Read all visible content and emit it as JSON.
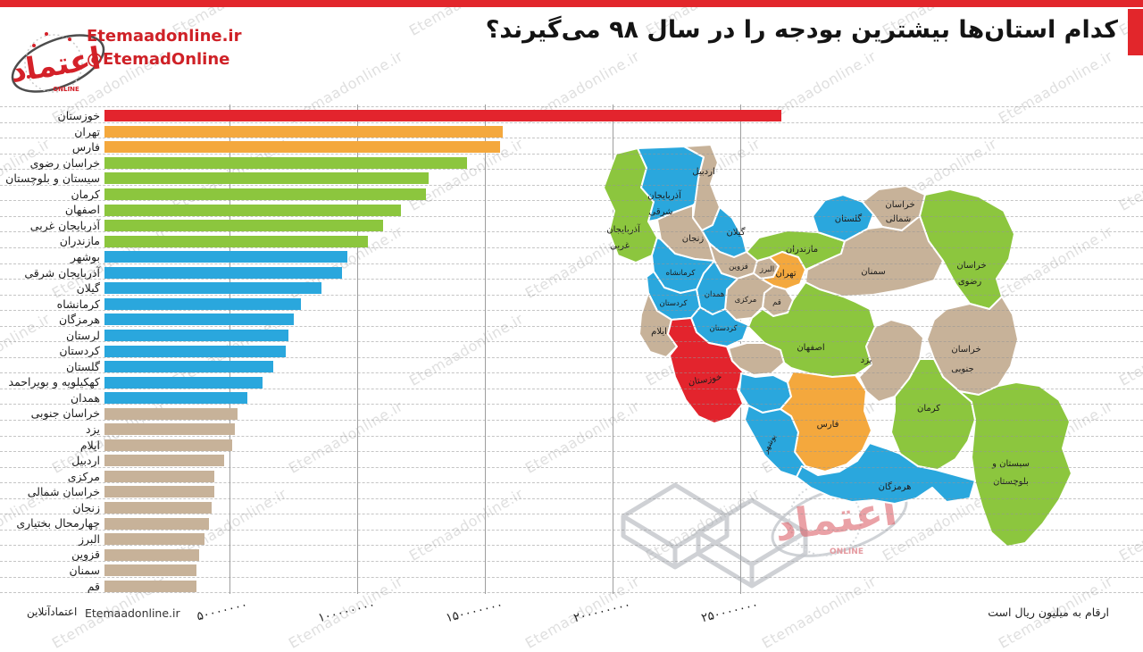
{
  "header": {
    "title": "کدام استان‌ها بیشترین بودجه را در سال ۹۸ می‌گیرند؟",
    "brand_url": "Etemaadonline.ir",
    "brand_handle": "@EtemadOnline",
    "logo_word": "اعتماد",
    "logo_online": "ONLINE"
  },
  "watermark": {
    "text": "Etemaadonline.ir"
  },
  "footer": {
    "credit_fa": "اعتمادآنلاین",
    "credit_en": "Etemaadonline.ir",
    "unit_note": "ارقام به میلیون ریال است"
  },
  "palette": {
    "red": "#e3242d",
    "orange": "#f4a83d",
    "green": "#8cc63e",
    "blue": "#2aa7dd",
    "tan": "#c7b299"
  },
  "chart_data": {
    "type": "bar",
    "orientation": "horizontal",
    "title": "کدام استان‌ها بیشترین بودجه را در سال ۹۸ می‌گیرند؟",
    "unit_note": "ارقام به میلیون ریال است",
    "legend_position": "none",
    "grid": "vertical solid gridlines + dashed horizontal row separators",
    "axis": {
      "tick_interval": 50000000,
      "xlim": [
        0,
        290000000
      ],
      "ticks": [
        {
          "label": "۵۰۰۰۰۰۰۰",
          "value": 50000000
        },
        {
          "label": "۱۰۰۰۰۰۰۰۰",
          "value": 100000000
        },
        {
          "label": "۱۵۰۰۰۰۰۰۰",
          "value": 150000000
        },
        {
          "label": "۲۰۰۰۰۰۰۰۰",
          "value": 200000000
        },
        {
          "label": "۲۵۰۰۰۰۰۰۰",
          "value": 250000000
        }
      ]
    },
    "provinces": [
      {
        "name": "خوزستان",
        "value": 265000000,
        "color": "red"
      },
      {
        "name": "تهران",
        "value": 156000000,
        "color": "orange"
      },
      {
        "name": "فارس",
        "value": 155000000,
        "color": "orange"
      },
      {
        "name": "خراسان رضوی",
        "value": 142000000,
        "color": "green"
      },
      {
        "name": "سیستان و بلوچستان",
        "value": 127000000,
        "color": "green"
      },
      {
        "name": "کرمان",
        "value": 126000000,
        "color": "green"
      },
      {
        "name": "اصفهان",
        "value": 116000000,
        "color": "green"
      },
      {
        "name": "آذربایجان غربی",
        "value": 109000000,
        "color": "green"
      },
      {
        "name": "مازندران",
        "value": 103000000,
        "color": "green"
      },
      {
        "name": "بوشهر",
        "value": 95000000,
        "color": "blue"
      },
      {
        "name": "آذربایجان شرقی",
        "value": 93000000,
        "color": "blue"
      },
      {
        "name": "گیلان",
        "value": 85000000,
        "color": "blue"
      },
      {
        "name": "کرمانشاه",
        "value": 77000000,
        "color": "blue"
      },
      {
        "name": "هرمزگان",
        "value": 74000000,
        "color": "blue"
      },
      {
        "name": "لرستان",
        "value": 72000000,
        "color": "blue"
      },
      {
        "name": "کردستان",
        "value": 71000000,
        "color": "blue"
      },
      {
        "name": "گلستان",
        "value": 66000000,
        "color": "blue"
      },
      {
        "name": "کهکیلویه و بویراحمد",
        "value": 62000000,
        "color": "blue"
      },
      {
        "name": "همدان",
        "value": 56000000,
        "color": "blue"
      },
      {
        "name": "خراسان جنوبی",
        "value": 52000000,
        "color": "tan"
      },
      {
        "name": "یزد",
        "value": 51000000,
        "color": "tan"
      },
      {
        "name": "ایلام",
        "value": 50000000,
        "color": "tan"
      },
      {
        "name": "اردبیل",
        "value": 47000000,
        "color": "tan"
      },
      {
        "name": "مرکزی",
        "value": 43000000,
        "color": "tan"
      },
      {
        "name": "خراسان شمالی",
        "value": 43000000,
        "color": "tan"
      },
      {
        "name": "زنجان",
        "value": 42000000,
        "color": "tan"
      },
      {
        "name": "چهارمحال بختیاری",
        "value": 41000000,
        "color": "tan"
      },
      {
        "name": "البرز",
        "value": 39000000,
        "color": "tan"
      },
      {
        "name": "قزوین",
        "value": 37000000,
        "color": "tan"
      },
      {
        "name": "سمنان",
        "value": 36000000,
        "color": "tan"
      },
      {
        "name": "قم",
        "value": 36000000,
        "color": "tan"
      }
    ]
  },
  "map": {
    "labels": {
      "ardabil": "اردبیل",
      "az_sharghi_1": "آذربایجان",
      "az_sharghi_2": "شرقی",
      "az_gharbi_1": "آذربایجان",
      "az_gharbi_2": "غربی",
      "gilan": "گیلان",
      "zanjan": "زنجان",
      "qazvin": "قزوین",
      "alborz": "البرز",
      "tehran": "تهران",
      "mazandaran": "مازندران",
      "golestan": "گلستان",
      "kh_shomali_1": "خراسان",
      "kh_shomali_2": "شمالی",
      "kh_razavi_1": "خراسان",
      "kh_razavi_2": "رضوی",
      "semnan": "سمنان",
      "qom": "قم",
      "markazi": "مرکزی",
      "hamedan": "همدان",
      "kermanshah": "کرمانشاه",
      "kordestan": "کردستان",
      "lorestan_printed": "کردستان",
      "ilam": "ایلام",
      "khuzestan": "خوزستان",
      "esfahan": "اصفهان",
      "yazd": "یزد",
      "kh_jonubi_1": "خراسان",
      "kh_jonubi_2": "جنوبی",
      "fars": "فارس",
      "bushehr": "بوشهر",
      "kerman": "کرمان",
      "hormozgan": "هرمزگان",
      "sistan_1": "سیستان و",
      "sistan_2": "بلوچستان"
    }
  }
}
